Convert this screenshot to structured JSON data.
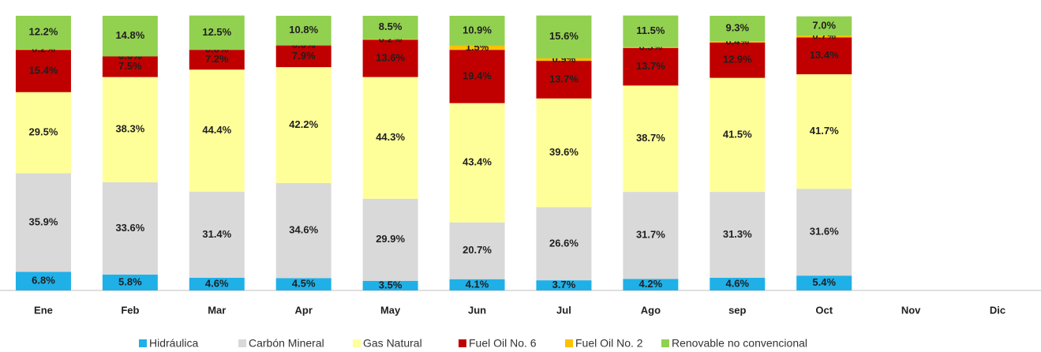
{
  "chart_data": {
    "type": "stacked_bar",
    "categories": [
      "Ene",
      "Feb",
      "Mar",
      "Apr",
      "May",
      "Jun",
      "Jul",
      "Ago",
      "sep",
      "Oct",
      "Nov",
      "Dic"
    ],
    "ylim": [
      0,
      100
    ],
    "series": [
      {
        "name": "Hidráulica",
        "color": "#1fb0e8",
        "values": [
          6.8,
          5.8,
          4.6,
          4.5,
          3.5,
          4.1,
          3.7,
          4.2,
          4.6,
          5.4,
          null,
          null
        ],
        "value_labels": [
          "6.8%",
          "5.8%",
          "4.6%",
          "4.5%",
          "3.5%",
          "4.1%",
          "3.7%",
          "4.2%",
          "4.6%",
          "5.4%",
          null,
          null
        ]
      },
      {
        "name": "Carbón Mineral",
        "color": "#d9d9d9",
        "values": [
          35.9,
          33.6,
          31.4,
          34.6,
          29.9,
          20.7,
          26.6,
          31.7,
          31.3,
          31.6,
          null,
          null
        ],
        "value_labels": [
          "35.9%",
          "33.6%",
          "31.4%",
          "34.6%",
          "29.9%",
          "20.7%",
          "26.6%",
          "31.7%",
          "31.3%",
          "31.6%",
          null,
          null
        ]
      },
      {
        "name": "Gas Natural",
        "color": "#ffff99",
        "values": [
          29.5,
          38.3,
          44.4,
          42.2,
          44.3,
          43.4,
          39.6,
          38.7,
          41.5,
          41.7,
          null,
          null
        ],
        "value_labels": [
          "29.5%",
          "38.3%",
          "44.4%",
          "42.2%",
          "44.3%",
          "43.4%",
          "39.6%",
          "38.7%",
          "41.5%",
          "41.7%",
          null,
          null
        ]
      },
      {
        "name": "Fuel Oil No. 6",
        "color": "#c00000",
        "values": [
          15.4,
          7.5,
          7.2,
          7.9,
          13.6,
          19.4,
          13.7,
          13.7,
          12.9,
          13.4,
          null,
          null
        ],
        "value_labels": [
          "15.4%",
          "7.5%",
          "7.2%",
          "7.9%",
          "13.6%",
          "19.4%",
          "13.7%",
          "13.7%",
          "12.9%",
          "13.4%",
          null,
          null
        ]
      },
      {
        "name": "Fuel Oil No. 2",
        "color": "#ffc000",
        "values": [
          0.2,
          0.0,
          0.0,
          0.0,
          0.2,
          1.5,
          0.9,
          0.3,
          0.4,
          0.7,
          null,
          null
        ],
        "value_labels": [
          "0.2%",
          "0.0%",
          "0.0%",
          "0.0%",
          "0.2%",
          "1.5%",
          "0.9%",
          "0.3%",
          "0.4%",
          "0.7%",
          null,
          null
        ]
      },
      {
        "name": "Renovable no convencional",
        "color": "#92d050",
        "values": [
          12.2,
          14.8,
          12.5,
          10.8,
          8.5,
          10.9,
          15.6,
          11.5,
          9.3,
          7.0,
          null,
          null
        ],
        "value_labels": [
          "12.2%",
          "14.8%",
          "12.5%",
          "10.8%",
          "8.5%",
          "10.9%",
          "15.6%",
          "11.5%",
          "9.3%",
          "7.0%",
          null,
          null
        ]
      }
    ]
  }
}
